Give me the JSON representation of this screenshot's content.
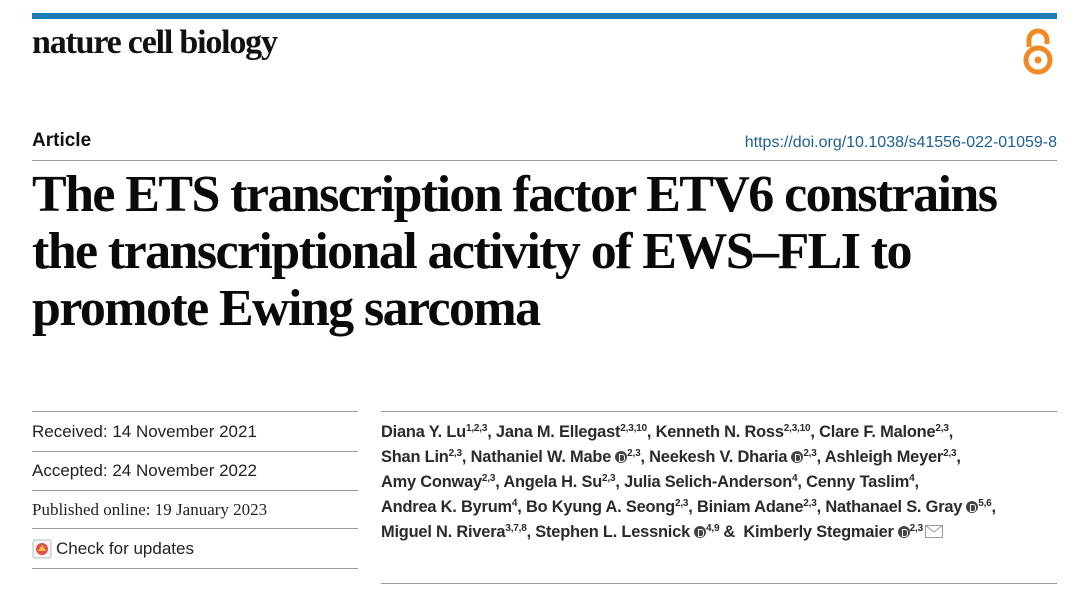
{
  "header": {
    "journal": "nature cell biology",
    "article_type": "Article",
    "doi": "https://doi.org/10.1038/s41556-022-01059-8"
  },
  "title_lines": [
    "The ETS transcription factor ETV6 constrains",
    "the transcriptional activity of EWS–FLI to",
    "promote Ewing sarcoma"
  ],
  "dates": {
    "received": "Received: 14 November 2021",
    "accepted": "Accepted: 24 November 2022",
    "published": "Published online: 19 January 2023"
  },
  "check_updates": "Check for updates",
  "author_lines": [
    [
      {
        "name": "Diana Y. Lu",
        "affiliations": "1,2,3",
        "sep": ","
      },
      {
        "name": "Jana M. Ellegast",
        "affiliations": "2,3,10",
        "sep": ","
      },
      {
        "name": "Kenneth N. Ross",
        "affiliations": "2,3,10",
        "sep": ","
      },
      {
        "name": "Clare F. Malone",
        "affiliations": "2,3",
        "sep": ","
      }
    ],
    [
      {
        "name": "Shan Lin",
        "affiliations": "2,3",
        "sep": ","
      },
      {
        "name": "Nathaniel W. Mabe",
        "orcid": true,
        "affiliations": "2,3",
        "sep": ","
      },
      {
        "name": "Neekesh V. Dharia",
        "orcid": true,
        "affiliations": "2,3",
        "sep": ","
      },
      {
        "name": "Ashleigh Meyer",
        "affiliations": "2,3",
        "sep": ","
      }
    ],
    [
      {
        "name": "Amy Conway",
        "affiliations": "2,3",
        "sep": ","
      },
      {
        "name": "Angela H. Su",
        "affiliations": "2,3",
        "sep": ","
      },
      {
        "name": "Julia Selich-Anderson",
        "affiliations": "4",
        "sep": ","
      },
      {
        "name": "Cenny Taslim",
        "affiliations": "4",
        "sep": ","
      }
    ],
    [
      {
        "name": "Andrea K. Byrum",
        "affiliations": "4",
        "sep": ","
      },
      {
        "name": "Bo Kyung A. Seong",
        "affiliations": "2,3",
        "sep": ","
      },
      {
        "name": "Biniam Adane",
        "affiliations": "2,3",
        "sep": ","
      },
      {
        "name": "Nathanael S. Gray",
        "orcid": true,
        "affiliations": "5,6",
        "sep": ","
      }
    ],
    [
      {
        "name": "Miguel N. Rivera",
        "affiliations": "3,7,8",
        "sep": ","
      },
      {
        "name": "Stephen L. Lessnick",
        "orcid": true,
        "affiliations": "4,9",
        "sep": "&"
      },
      {
        "name": "Kimberly Stegmaier",
        "orcid": true,
        "affiliations": "2,3"
      }
    ]
  ]
}
